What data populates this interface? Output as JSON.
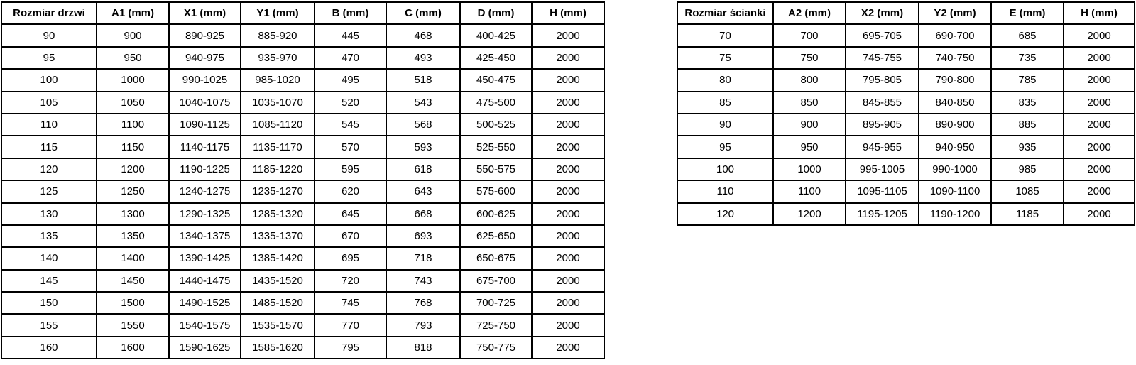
{
  "colors": {
    "background": "#ffffff",
    "border": "#000000",
    "text": "#000000"
  },
  "door_table": {
    "headers": [
      "Rozmiar drzwi",
      "A1 (mm)",
      "X1 (mm)",
      "Y1 (mm)",
      "B (mm)",
      "C (mm)",
      "D (mm)",
      "H (mm)"
    ],
    "rows": [
      [
        "90",
        "900",
        "890-925",
        "885-920",
        "445",
        "468",
        "400-425",
        "2000"
      ],
      [
        "95",
        "950",
        "940-975",
        "935-970",
        "470",
        "493",
        "425-450",
        "2000"
      ],
      [
        "100",
        "1000",
        "990-1025",
        "985-1020",
        "495",
        "518",
        "450-475",
        "2000"
      ],
      [
        "105",
        "1050",
        "1040-1075",
        "1035-1070",
        "520",
        "543",
        "475-500",
        "2000"
      ],
      [
        "110",
        "1100",
        "1090-1125",
        "1085-1120",
        "545",
        "568",
        "500-525",
        "2000"
      ],
      [
        "115",
        "1150",
        "1140-1175",
        "1135-1170",
        "570",
        "593",
        "525-550",
        "2000"
      ],
      [
        "120",
        "1200",
        "1190-1225",
        "1185-1220",
        "595",
        "618",
        "550-575",
        "2000"
      ],
      [
        "125",
        "1250",
        "1240-1275",
        "1235-1270",
        "620",
        "643",
        "575-600",
        "2000"
      ],
      [
        "130",
        "1300",
        "1290-1325",
        "1285-1320",
        "645",
        "668",
        "600-625",
        "2000"
      ],
      [
        "135",
        "1350",
        "1340-1375",
        "1335-1370",
        "670",
        "693",
        "625-650",
        "2000"
      ],
      [
        "140",
        "1400",
        "1390-1425",
        "1385-1420",
        "695",
        "718",
        "650-675",
        "2000"
      ],
      [
        "145",
        "1450",
        "1440-1475",
        "1435-1520",
        "720",
        "743",
        "675-700",
        "2000"
      ],
      [
        "150",
        "1500",
        "1490-1525",
        "1485-1520",
        "745",
        "768",
        "700-725",
        "2000"
      ],
      [
        "155",
        "1550",
        "1540-1575",
        "1535-1570",
        "770",
        "793",
        "725-750",
        "2000"
      ],
      [
        "160",
        "1600",
        "1590-1625",
        "1585-1620",
        "795",
        "818",
        "750-775",
        "2000"
      ]
    ]
  },
  "wall_table": {
    "headers": [
      "Rozmiar ścianki",
      "A2 (mm)",
      "X2 (mm)",
      "Y2 (mm)",
      "E (mm)",
      "H (mm)"
    ],
    "rows": [
      [
        "70",
        "700",
        "695-705",
        "690-700",
        "685",
        "2000"
      ],
      [
        "75",
        "750",
        "745-755",
        "740-750",
        "735",
        "2000"
      ],
      [
        "80",
        "800",
        "795-805",
        "790-800",
        "785",
        "2000"
      ],
      [
        "85",
        "850",
        "845-855",
        "840-850",
        "835",
        "2000"
      ],
      [
        "90",
        "900",
        "895-905",
        "890-900",
        "885",
        "2000"
      ],
      [
        "95",
        "950",
        "945-955",
        "940-950",
        "935",
        "2000"
      ],
      [
        "100",
        "1000",
        "995-1005",
        "990-1000",
        "985",
        "2000"
      ],
      [
        "110",
        "1100",
        "1095-1105",
        "1090-1100",
        "1085",
        "2000"
      ],
      [
        "120",
        "1200",
        "1195-1205",
        "1190-1200",
        "1185",
        "2000"
      ]
    ]
  }
}
